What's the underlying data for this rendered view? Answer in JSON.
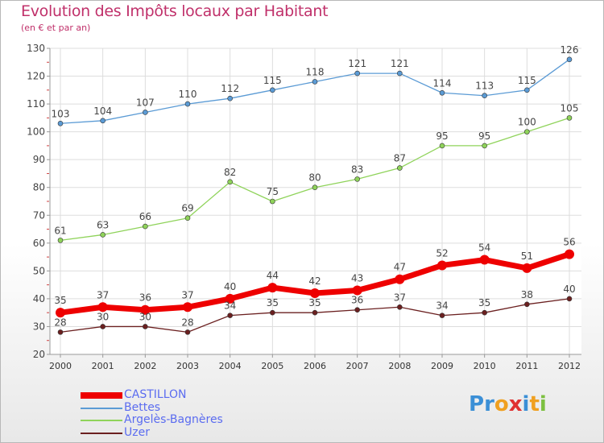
{
  "header": {
    "title": "Evolution des Impôts locaux par Habitant",
    "subtitle": "(en € et par an)"
  },
  "logo": {
    "text": "Proxiti",
    "letters": [
      {
        "ch": "P",
        "color": "#3b8fd6"
      },
      {
        "ch": "r",
        "color": "#3b8fd6"
      },
      {
        "ch": "o",
        "color": "#f0a020"
      },
      {
        "ch": "x",
        "color": "#e03030"
      },
      {
        "ch": "i",
        "color": "#3b8fd6"
      },
      {
        "ch": "t",
        "color": "#f0a020"
      },
      {
        "ch": "i",
        "color": "#7cc040"
      }
    ]
  },
  "chart_data": {
    "type": "line",
    "title": "Evolution des Impôts locaux par Habitant",
    "subtitle": "(en € et par an)",
    "x": [
      "2000",
      "2001",
      "2002",
      "2003",
      "2004",
      "2005",
      "2006",
      "2007",
      "2008",
      "2009",
      "2010",
      "2011",
      "2012"
    ],
    "yticks": [
      20,
      30,
      40,
      50,
      60,
      70,
      80,
      90,
      100,
      110,
      120,
      130
    ],
    "ylim": [
      20,
      130
    ],
    "grid": true,
    "legend_position": "bottom-left",
    "series": [
      {
        "name": "CASTILLON",
        "color": "#ee0000",
        "values": [
          35,
          37,
          36,
          37,
          40,
          44,
          42,
          43,
          47,
          52,
          54,
          51,
          56
        ]
      },
      {
        "name": "Bettes",
        "color": "#5b9bd5",
        "values": [
          103,
          104,
          107,
          110,
          112,
          115,
          118,
          121,
          121,
          114,
          113,
          115,
          126
        ]
      },
      {
        "name": "Argelès-Bagnères",
        "color": "#8fd35a",
        "values": [
          61,
          63,
          66,
          69,
          82,
          75,
          80,
          83,
          87,
          95,
          95,
          100,
          105
        ]
      },
      {
        "name": "Uzer",
        "color": "#6b2020",
        "values": [
          28,
          30,
          30,
          28,
          34,
          35,
          35,
          36,
          37,
          34,
          35,
          38,
          40
        ]
      }
    ]
  }
}
